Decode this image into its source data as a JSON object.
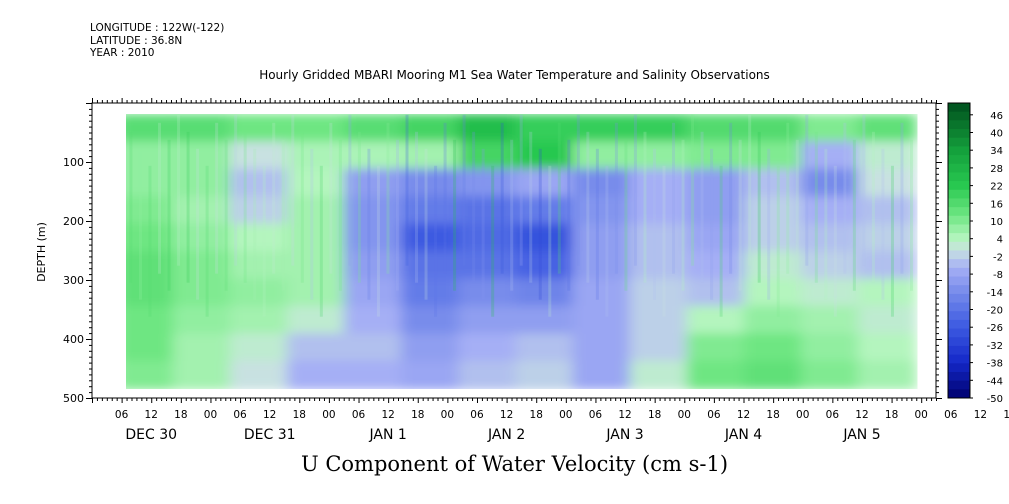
{
  "header": {
    "longitude": "LONGITUDE : 122W(-122)",
    "latitude": "LATITUDE : 36.8N",
    "year": "YEAR : 2010"
  },
  "chart_data": {
    "type": "heatmap",
    "title": "Hourly Gridded MBARI Mooring M1 Sea Water Temperature and Salinity Observations",
    "xlabel": "U Component of Water Velocity (cm s-1)",
    "ylabel": "DEPTH (m)",
    "ylim": [
      500,
      0
    ],
    "y_ticks": [
      100,
      200,
      300,
      400,
      500
    ],
    "x_hour_ticks": [
      "06",
      "12",
      "18",
      "00",
      "06",
      "12",
      "18",
      "00",
      "06",
      "12",
      "18",
      "00",
      "06",
      "12",
      "18",
      "00",
      "06",
      "12",
      "18",
      "00",
      "06",
      "12",
      "18",
      "00",
      "06",
      "12",
      "18",
      "00",
      "06",
      "12",
      "18",
      "00"
    ],
    "x_day_labels": [
      "DEC 30",
      "DEC 31",
      "JAN  1",
      "JAN  2",
      "JAN  3",
      "JAN  4",
      "JAN  5"
    ],
    "colorbar_labels": [
      "46",
      "40",
      "34",
      "28",
      "22",
      "16",
      "10",
      "4",
      "-2",
      "-8",
      "-14",
      "-20",
      "-26",
      "-32",
      "-38",
      "-44",
      "-50"
    ],
    "colorbar_range": [
      -50,
      50
    ],
    "data_depth_range": [
      20,
      485
    ],
    "time_range_hours": [
      5,
      167
    ],
    "depth_bins_m": [
      25,
      75,
      125,
      175,
      225,
      275,
      325,
      375,
      425,
      475
    ],
    "time_bins": [
      "DEC 30 06",
      "DEC 30 18",
      "DEC 31 06",
      "DEC 31 18",
      "JAN 1 06",
      "JAN 1 18",
      "JAN 2 06",
      "JAN 2 18",
      "JAN 3 06",
      "JAN 3 18",
      "JAN 4 06",
      "JAN 4 18",
      "JAN 5 06",
      "JAN 5 18"
    ],
    "values": [
      [
        15,
        15,
        12,
        12,
        15,
        18,
        25,
        20,
        20,
        20,
        16,
        16,
        10,
        14
      ],
      [
        8,
        8,
        0,
        5,
        5,
        6,
        18,
        22,
        8,
        8,
        10,
        10,
        -6,
        2
      ],
      [
        8,
        8,
        -4,
        4,
        -10,
        -14,
        -12,
        -8,
        -14,
        -6,
        -10,
        -4,
        -14,
        0
      ],
      [
        10,
        6,
        -2,
        6,
        -12,
        -18,
        -20,
        -18,
        -12,
        -6,
        -10,
        -2,
        -6,
        -4
      ],
      [
        12,
        8,
        4,
        6,
        -12,
        -26,
        -22,
        -28,
        -10,
        -4,
        -8,
        -2,
        -4,
        -2
      ],
      [
        14,
        10,
        6,
        6,
        -10,
        -20,
        -20,
        -24,
        -10,
        -4,
        -6,
        2,
        -2,
        -4
      ],
      [
        14,
        10,
        8,
        6,
        -8,
        -18,
        -14,
        -16,
        -8,
        -2,
        -4,
        4,
        2,
        4
      ],
      [
        12,
        8,
        6,
        2,
        -6,
        -14,
        -10,
        -10,
        -8,
        -2,
        4,
        8,
        6,
        2
      ],
      [
        12,
        6,
        2,
        -4,
        -4,
        -10,
        -6,
        -4,
        -8,
        -2,
        10,
        12,
        8,
        4
      ],
      [
        10,
        6,
        0,
        -6,
        -6,
        -8,
        -4,
        -2,
        -8,
        2,
        12,
        14,
        10,
        6
      ]
    ]
  }
}
